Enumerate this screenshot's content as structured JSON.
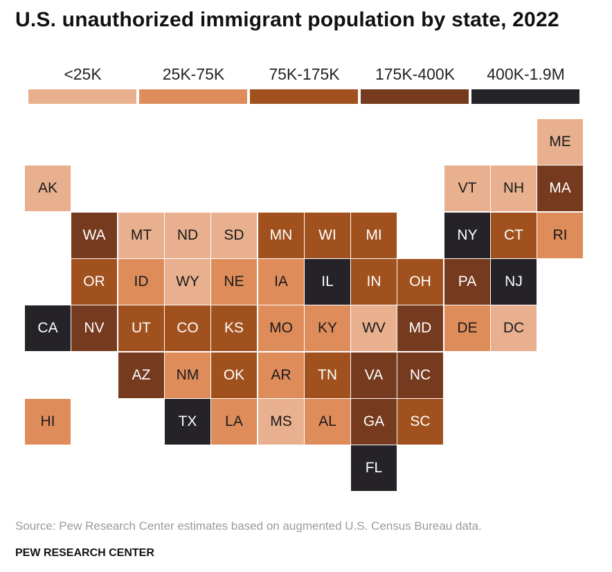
{
  "title": "U.S. unauthorized immigrant population by state, 2022",
  "legend": [
    {
      "label": "<25K",
      "color": "#e8b08e"
    },
    {
      "label": "25K-75K",
      "color": "#de8c5a"
    },
    {
      "label": "75K-175K",
      "color": "#a0511e"
    },
    {
      "label": "175K-400K",
      "color": "#763a1e"
    },
    {
      "label": "400K-1.9M",
      "color": "#252328"
    }
  ],
  "states": [
    {
      "abbr": "ME",
      "col": 11,
      "row": 0,
      "bin": 0
    },
    {
      "abbr": "AK",
      "col": 0,
      "row": 1,
      "bin": 0
    },
    {
      "abbr": "VT",
      "col": 9,
      "row": 1,
      "bin": 0
    },
    {
      "abbr": "NH",
      "col": 10,
      "row": 1,
      "bin": 0
    },
    {
      "abbr": "MA",
      "col": 11,
      "row": 1,
      "bin": 3
    },
    {
      "abbr": "WA",
      "col": 1,
      "row": 2,
      "bin": 3
    },
    {
      "abbr": "MT",
      "col": 2,
      "row": 2,
      "bin": 0
    },
    {
      "abbr": "ND",
      "col": 3,
      "row": 2,
      "bin": 0
    },
    {
      "abbr": "SD",
      "col": 4,
      "row": 2,
      "bin": 0
    },
    {
      "abbr": "MN",
      "col": 5,
      "row": 2,
      "bin": 2
    },
    {
      "abbr": "WI",
      "col": 6,
      "row": 2,
      "bin": 2
    },
    {
      "abbr": "MI",
      "col": 7,
      "row": 2,
      "bin": 2
    },
    {
      "abbr": "NY",
      "col": 9,
      "row": 2,
      "bin": 4
    },
    {
      "abbr": "CT",
      "col": 10,
      "row": 2,
      "bin": 2
    },
    {
      "abbr": "RI",
      "col": 11,
      "row": 2,
      "bin": 1
    },
    {
      "abbr": "OR",
      "col": 1,
      "row": 3,
      "bin": 2
    },
    {
      "abbr": "ID",
      "col": 2,
      "row": 3,
      "bin": 1
    },
    {
      "abbr": "WY",
      "col": 3,
      "row": 3,
      "bin": 0
    },
    {
      "abbr": "NE",
      "col": 4,
      "row": 3,
      "bin": 1
    },
    {
      "abbr": "IA",
      "col": 5,
      "row": 3,
      "bin": 1
    },
    {
      "abbr": "IL",
      "col": 6,
      "row": 3,
      "bin": 4
    },
    {
      "abbr": "IN",
      "col": 7,
      "row": 3,
      "bin": 2
    },
    {
      "abbr": "OH",
      "col": 8,
      "row": 3,
      "bin": 2
    },
    {
      "abbr": "PA",
      "col": 9,
      "row": 3,
      "bin": 3
    },
    {
      "abbr": "NJ",
      "col": 10,
      "row": 3,
      "bin": 4
    },
    {
      "abbr": "CA",
      "col": 0,
      "row": 4,
      "bin": 4
    },
    {
      "abbr": "NV",
      "col": 1,
      "row": 4,
      "bin": 3
    },
    {
      "abbr": "UT",
      "col": 2,
      "row": 4,
      "bin": 2
    },
    {
      "abbr": "CO",
      "col": 3,
      "row": 4,
      "bin": 2
    },
    {
      "abbr": "KS",
      "col": 4,
      "row": 4,
      "bin": 2
    },
    {
      "abbr": "MO",
      "col": 5,
      "row": 4,
      "bin": 1
    },
    {
      "abbr": "KY",
      "col": 6,
      "row": 4,
      "bin": 1
    },
    {
      "abbr": "WV",
      "col": 7,
      "row": 4,
      "bin": 0
    },
    {
      "abbr": "MD",
      "col": 8,
      "row": 4,
      "bin": 3
    },
    {
      "abbr": "DE",
      "col": 9,
      "row": 4,
      "bin": 1
    },
    {
      "abbr": "DC",
      "col": 10,
      "row": 4,
      "bin": 0
    },
    {
      "abbr": "AZ",
      "col": 2,
      "row": 5,
      "bin": 3
    },
    {
      "abbr": "NM",
      "col": 3,
      "row": 5,
      "bin": 1
    },
    {
      "abbr": "OK",
      "col": 4,
      "row": 5,
      "bin": 2
    },
    {
      "abbr": "AR",
      "col": 5,
      "row": 5,
      "bin": 1
    },
    {
      "abbr": "TN",
      "col": 6,
      "row": 5,
      "bin": 2
    },
    {
      "abbr": "VA",
      "col": 7,
      "row": 5,
      "bin": 3
    },
    {
      "abbr": "NC",
      "col": 8,
      "row": 5,
      "bin": 3
    },
    {
      "abbr": "HI",
      "col": 0,
      "row": 6,
      "bin": 1
    },
    {
      "abbr": "TX",
      "col": 3,
      "row": 6,
      "bin": 4
    },
    {
      "abbr": "LA",
      "col": 4,
      "row": 6,
      "bin": 1
    },
    {
      "abbr": "MS",
      "col": 5,
      "row": 6,
      "bin": 0
    },
    {
      "abbr": "AL",
      "col": 6,
      "row": 6,
      "bin": 1
    },
    {
      "abbr": "GA",
      "col": 7,
      "row": 6,
      "bin": 3
    },
    {
      "abbr": "SC",
      "col": 8,
      "row": 6,
      "bin": 2
    },
    {
      "abbr": "FL",
      "col": 7,
      "row": 7,
      "bin": 4
    }
  ],
  "source": "Source: Pew Research Center estimates based on augmented U.S. Census Bureau data.",
  "organization": "PEW RESEARCH CENTER"
}
